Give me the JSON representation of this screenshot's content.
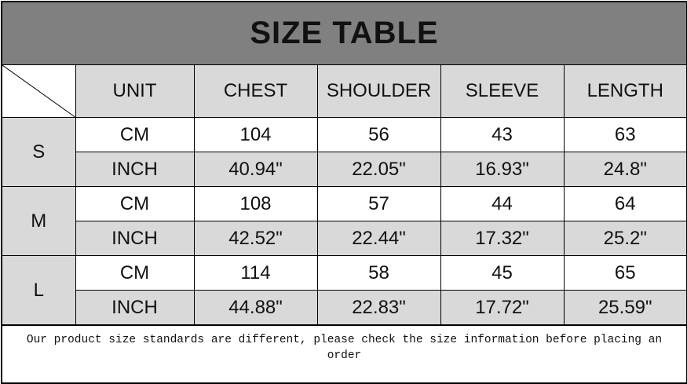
{
  "title": "SIZE TABLE",
  "headers": [
    "UNIT",
    "CHEST",
    "SHOULDER",
    "SLEEVE",
    "LENGTH"
  ],
  "rows": [
    {
      "size": "S",
      "cm": {
        "unit": "CM",
        "values": [
          "104",
          "56",
          "43",
          "63"
        ]
      },
      "inch": {
        "unit": "INCH",
        "values": [
          "40.94\"",
          "22.05\"",
          "16.93\"",
          "24.8\""
        ]
      }
    },
    {
      "size": "M",
      "cm": {
        "unit": "CM",
        "values": [
          "108",
          "57",
          "44",
          "64"
        ]
      },
      "inch": {
        "unit": "INCH",
        "values": [
          "42.52\"",
          "22.44\"",
          "17.32\"",
          "25.2\""
        ]
      }
    },
    {
      "size": "L",
      "cm": {
        "unit": "CM",
        "values": [
          "114",
          "58",
          "45",
          "65"
        ]
      },
      "inch": {
        "unit": "INCH",
        "values": [
          "44.88\"",
          "22.83\"",
          "17.72\"",
          "25.59\""
        ]
      }
    }
  ],
  "note": "Our product size standards are different, please check the size information before placing an order",
  "colors": {
    "title_bg": "#808080",
    "header_bg": "#d9d9d9",
    "white": "#ffffff"
  }
}
